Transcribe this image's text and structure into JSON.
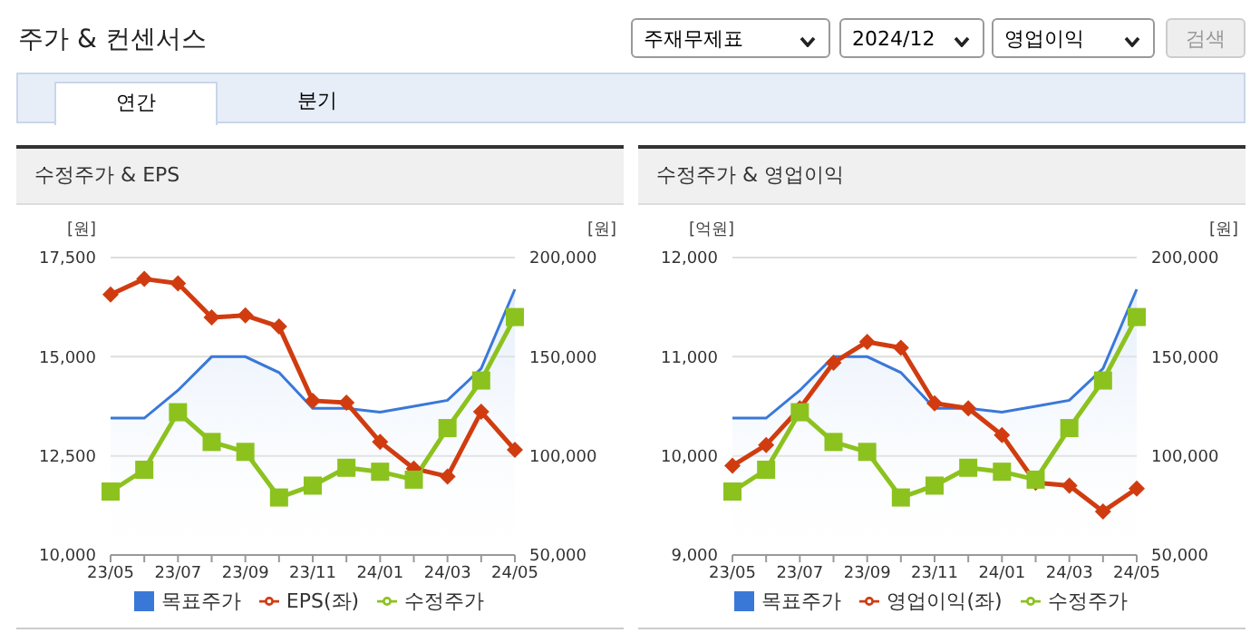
{
  "chart_data": [
    {
      "type": "line",
      "title": "수정주가 & EPS",
      "ylabel": "[원]",
      "y2label": "[원]",
      "annotations": [
        "주가 & 컨센서스",
        "주재무제표",
        "2024/12",
        "영업이익",
        "검색",
        "연간",
        "분기"
      ],
      "categories": [
        "23/05",
        null,
        "23/07",
        null,
        "23/09",
        null,
        "23/11",
        null,
        "24/01",
        null,
        "24/03",
        null,
        "24/05"
      ],
      "series": [
        {
          "name": "목표주가",
          "type": "area",
          "color": "#3a78d8",
          "axis": "y2",
          "values": [
            119000,
            119000,
            133000,
            150000,
            150000,
            142000,
            124000,
            124000,
            122000,
            125000,
            128000,
            144000,
            184000
          ]
        },
        {
          "name": "EPS(좌)",
          "color": "#d03c10",
          "axis": "y",
          "marker": "diamond",
          "values": [
            16570,
            16960,
            16850,
            15990,
            16040,
            15760,
            13890,
            13840,
            12850,
            12180,
            11980,
            13610,
            12650
          ]
        },
        {
          "name": "수정주가",
          "color": "#8cc21e",
          "axis": "y2",
          "marker": "square",
          "values": [
            82000,
            93000,
            122000,
            107000,
            102000,
            79000,
            85000,
            94000,
            92000,
            88000,
            114000,
            138000,
            170000
          ]
        }
      ],
      "ylim": [
        10000,
        17500
      ],
      "yticks": [
        {
          "value": 10000,
          "label": "10,000"
        },
        {
          "value": 12500,
          "label": "12,500"
        },
        {
          "value": 15000,
          "label": "15,000"
        },
        {
          "value": 17500,
          "label": "17,500"
        }
      ],
      "y2lim": [
        50000,
        200000
      ],
      "y2ticks": [
        {
          "value": 50000,
          "label": "50,000"
        },
        {
          "value": 100000,
          "label": "100,000"
        },
        {
          "value": 150000,
          "label": "150,000"
        },
        {
          "value": 200000,
          "label": "200,000"
        }
      ],
      "grid": "y",
      "legend": "bottom"
    },
    {
      "type": "line",
      "title": "수정주가 & 영업이익",
      "ylabel": "[억원]",
      "y2label": "[원]",
      "categories": [
        "23/05",
        null,
        "23/07",
        null,
        "23/09",
        null,
        "23/11",
        null,
        "24/01",
        null,
        "24/03",
        null,
        "24/05"
      ],
      "series": [
        {
          "name": "목표주가",
          "type": "area",
          "color": "#3a78d8",
          "axis": "y2",
          "values": [
            119000,
            119000,
            133000,
            150000,
            150000,
            142000,
            124000,
            124000,
            122000,
            125000,
            128000,
            144000,
            184000
          ]
        },
        {
          "name": "영업이익(좌)",
          "color": "#d03c10",
          "axis": "y",
          "marker": "diamond",
          "values": [
            9900,
            10110,
            10480,
            10940,
            11150,
            11090,
            10530,
            10480,
            10210,
            9730,
            9700,
            9440,
            9670
          ]
        },
        {
          "name": "수정주가",
          "color": "#8cc21e",
          "axis": "y2",
          "marker": "square",
          "values": [
            82000,
            93000,
            122000,
            107000,
            102000,
            79000,
            85000,
            94000,
            92000,
            88000,
            114000,
            138000,
            170000
          ]
        }
      ],
      "ylim": [
        9000,
        12000
      ],
      "yticks": [
        {
          "value": 9000,
          "label": "9,000"
        },
        {
          "value": 10000,
          "label": "10,000"
        },
        {
          "value": 11000,
          "label": "11,000"
        },
        {
          "value": 12000,
          "label": "12,000"
        }
      ],
      "y2lim": [
        50000,
        200000
      ],
      "y2ticks": [
        {
          "value": 50000,
          "label": "50,000"
        },
        {
          "value": 100000,
          "label": "100,000"
        },
        {
          "value": 150000,
          "label": "150,000"
        },
        {
          "value": 200000,
          "label": "200,000"
        }
      ],
      "grid": "y",
      "legend": "bottom"
    }
  ]
}
